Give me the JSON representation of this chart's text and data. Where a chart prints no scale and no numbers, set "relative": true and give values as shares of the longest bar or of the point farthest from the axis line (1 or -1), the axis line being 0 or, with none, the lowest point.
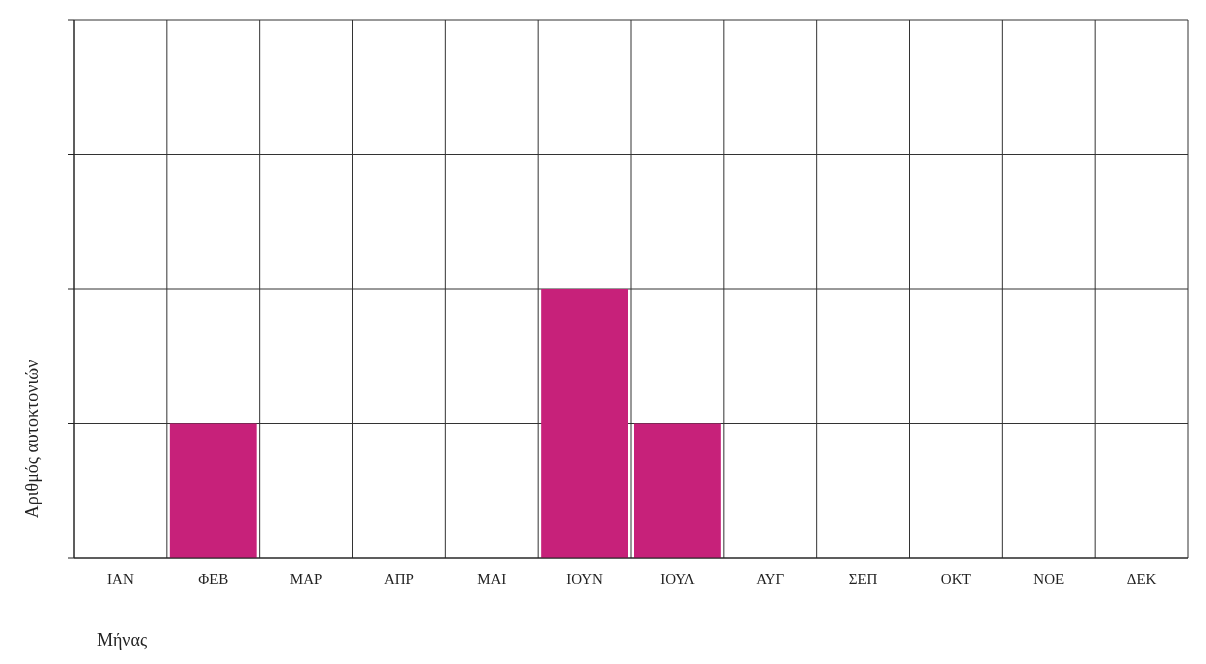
{
  "chart_data": {
    "type": "bar",
    "relative": true,
    "xlabel": "Μήνας",
    "ylabel": "Αριθμός αυτοκτονιών",
    "categories": [
      "ΙΑΝ",
      "ΦΕΒ",
      "ΜΑΡ",
      "ΑΠΡ",
      "ΜΑΙ",
      "ΙΟΥΝ",
      "ΙΟΥΛ",
      "ΑΥΓ",
      "ΣΕΠ",
      "ΟΚΤ",
      "ΝΟΕ",
      "ΔΕΚ"
    ],
    "values": [
      0,
      0.5,
      0,
      0,
      0,
      1,
      0.5,
      0,
      0,
      0,
      0,
      0
    ],
    "color": "#c7217a",
    "grid": true
  }
}
